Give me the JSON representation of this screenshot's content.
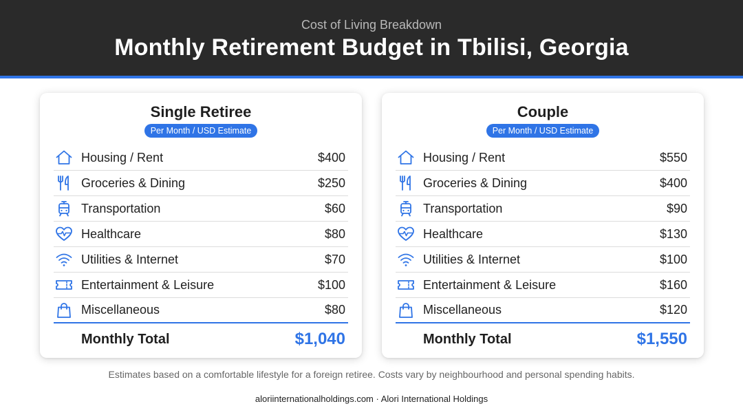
{
  "header": {
    "subtitle": "Cost of Living Breakdown",
    "title": "Monthly Retirement Budget in Tbilisi, Georgia"
  },
  "colors": {
    "accent": "#2f74e6",
    "header_bg": "#2a2a2a"
  },
  "cards": [
    {
      "title": "Single Retiree",
      "badge": "Per Month / USD Estimate",
      "items": [
        {
          "icon": "house-icon",
          "label": "Housing / Rent",
          "amount": "$400"
        },
        {
          "icon": "fork-knife-icon",
          "label": "Groceries & Dining",
          "amount": "$250"
        },
        {
          "icon": "tram-icon",
          "label": "Transportation",
          "amount": "$60"
        },
        {
          "icon": "heart-pulse-icon",
          "label": "Healthcare",
          "amount": "$80"
        },
        {
          "icon": "wifi-icon",
          "label": "Utilities & Internet",
          "amount": "$70"
        },
        {
          "icon": "ticket-icon",
          "label": "Entertainment & Leisure",
          "amount": "$100"
        },
        {
          "icon": "shopping-bag-icon",
          "label": "Miscellaneous",
          "amount": "$80"
        }
      ],
      "total_label": "Monthly Total",
      "total_amount": "$1,040"
    },
    {
      "title": "Couple",
      "badge": "Per Month / USD Estimate",
      "items": [
        {
          "icon": "house-icon",
          "label": "Housing / Rent",
          "amount": "$550"
        },
        {
          "icon": "fork-knife-icon",
          "label": "Groceries & Dining",
          "amount": "$400"
        },
        {
          "icon": "tram-icon",
          "label": "Transportation",
          "amount": "$90"
        },
        {
          "icon": "heart-pulse-icon",
          "label": "Healthcare",
          "amount": "$130"
        },
        {
          "icon": "wifi-icon",
          "label": "Utilities & Internet",
          "amount": "$100"
        },
        {
          "icon": "ticket-icon",
          "label": "Entertainment & Leisure",
          "amount": "$160"
        },
        {
          "icon": "shopping-bag-icon",
          "label": "Miscellaneous",
          "amount": "$120"
        }
      ],
      "total_label": "Monthly Total",
      "total_amount": "$1,550"
    }
  ],
  "footnote": "Estimates based on a comfortable lifestyle for a foreign retiree. Costs vary by neighbourhood and personal spending habits.",
  "footer": "aloriinternationalholdings.com · Alori International Holdings"
}
